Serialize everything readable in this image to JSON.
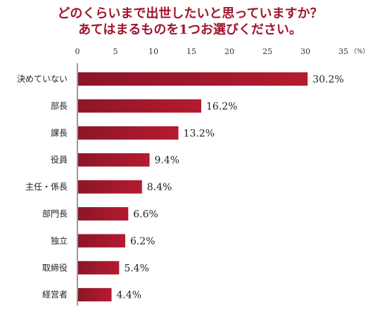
{
  "chart_data": {
    "type": "bar",
    "orientation": "horizontal",
    "title": [
      "どのくらいまで出世したいと思っていますか？",
      "あてはまるものを1つお選びください。"
    ],
    "unit": "（%）",
    "xlim": [
      0,
      35
    ],
    "ticks": [
      0,
      5,
      10,
      15,
      20,
      25,
      30,
      35
    ],
    "categories": [
      "決めていない",
      "部長",
      "課長",
      "役員",
      "主任・係長",
      "部門長",
      "独立",
      "取締役",
      "経営者"
    ],
    "values": [
      30.2,
      16.2,
      13.2,
      9.4,
      8.4,
      6.6,
      6.2,
      5.4,
      4.4
    ],
    "value_labels": [
      "30.2%",
      "16.2%",
      "13.2%",
      "9.4%",
      "8.4%",
      "6.6%",
      "6.2%",
      "5.4%",
      "4.4%"
    ],
    "bar_color": "#b51a30",
    "bar_color_dark": "#8c1627",
    "grid": false,
    "legend": "none"
  }
}
